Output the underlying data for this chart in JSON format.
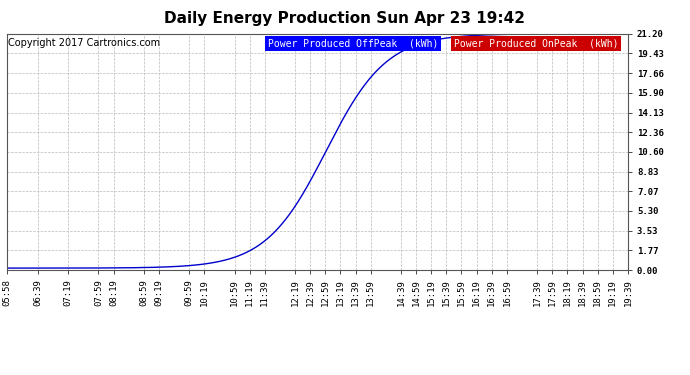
{
  "title": "Daily Energy Production Sun Apr 23 19:42",
  "copyright_text": "Copyright 2017 Cartronics.com",
  "legend_offpeak_label": "Power Produced OffPeak  (kWh)",
  "legend_onpeak_label": "Power Produced OnPeak  (kWh)",
  "legend_offpeak_bg": "#0000ff",
  "legend_onpeak_bg": "#cc0000",
  "line_color": "#0000cc",
  "background_color": "#ffffff",
  "plot_bg_color": "#ffffff",
  "grid_color": "#bbbbbb",
  "ytick_labels": [
    "0.00",
    "1.77",
    "3.53",
    "5.30",
    "7.07",
    "8.83",
    "10.60",
    "12.36",
    "14.13",
    "15.90",
    "17.66",
    "19.43",
    "21.20"
  ],
  "ytick_values": [
    0.0,
    1.77,
    3.53,
    5.3,
    7.07,
    8.83,
    10.6,
    12.36,
    14.13,
    15.9,
    17.66,
    19.43,
    21.2
  ],
  "ymax": 21.2,
  "ymin": 0.0,
  "xtick_labels": [
    "05:58",
    "06:39",
    "07:19",
    "07:59",
    "08:19",
    "08:59",
    "09:19",
    "09:59",
    "10:19",
    "10:59",
    "11:19",
    "11:39",
    "12:19",
    "12:39",
    "12:59",
    "13:19",
    "13:39",
    "13:59",
    "14:39",
    "14:59",
    "15:19",
    "15:39",
    "15:59",
    "16:19",
    "16:39",
    "16:59",
    "17:39",
    "17:59",
    "18:19",
    "18:39",
    "18:59",
    "19:19",
    "19:39"
  ],
  "title_fontsize": 11,
  "tick_fontsize": 6.5,
  "copyright_fontsize": 7,
  "legend_fontsize": 7
}
